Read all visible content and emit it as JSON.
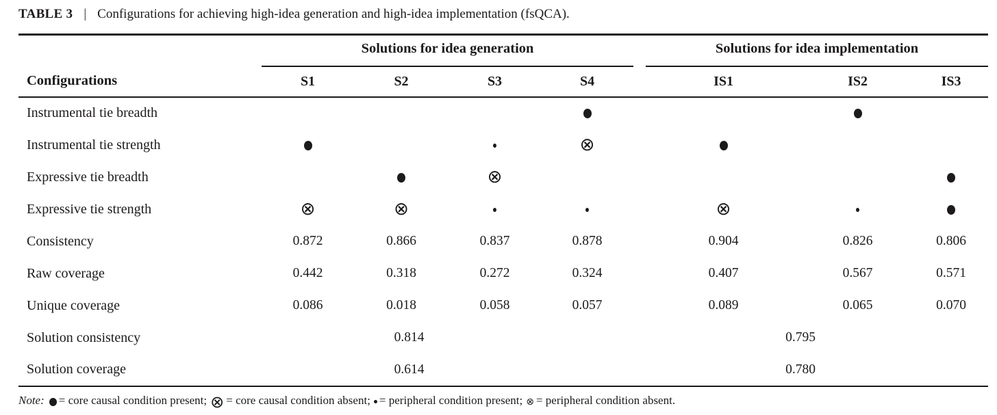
{
  "title": {
    "label": "TABLE 3",
    "separator": "|",
    "caption": "Configurations for achieving high-idea generation and high-idea implementation (fsQCA)."
  },
  "table": {
    "row_header": "Configurations",
    "groups": [
      {
        "label": "Solutions for idea generation",
        "columns": [
          "S1",
          "S2",
          "S3",
          "S4"
        ]
      },
      {
        "label": "Solutions for idea implementation",
        "columns": [
          "IS1",
          "IS2",
          "IS3"
        ]
      }
    ],
    "symbols": {
      "core_present": "●",
      "core_absent": "⊗",
      "peripheral_present": "•",
      "peripheral_absent": "⊗"
    },
    "condition_rows": [
      {
        "label": "Instrumental tie breadth",
        "cells": [
          "",
          "",
          "",
          "core-present",
          "",
          "core-present",
          ""
        ]
      },
      {
        "label": "Instrumental tie strength",
        "cells": [
          "core-present",
          "",
          "peripheral-present",
          "core-absent",
          "core-present",
          "",
          ""
        ]
      },
      {
        "label": "Expressive tie breadth",
        "cells": [
          "",
          "core-present",
          "core-absent",
          "",
          "",
          "",
          "core-present"
        ]
      },
      {
        "label": "Expressive tie strength",
        "cells": [
          "core-absent",
          "core-absent",
          "peripheral-present",
          "peripheral-present",
          "core-absent",
          "peripheral-present",
          "core-present"
        ]
      }
    ],
    "metric_rows": [
      {
        "label": "Consistency",
        "values": [
          "0.872",
          "0.866",
          "0.837",
          "0.878",
          "0.904",
          "0.826",
          "0.806"
        ]
      },
      {
        "label": "Raw coverage",
        "values": [
          "0.442",
          "0.318",
          "0.272",
          "0.324",
          "0.407",
          "0.567",
          "0.571"
        ]
      },
      {
        "label": "Unique coverage",
        "values": [
          "0.086",
          "0.018",
          "0.058",
          "0.057",
          "0.089",
          "0.065",
          "0.070"
        ]
      }
    ],
    "solution_rows": [
      {
        "label": "Solution consistency",
        "generation": "0.814",
        "implementation": "0.795"
      },
      {
        "label": "Solution coverage",
        "generation": "0.614",
        "implementation": "0.780"
      }
    ]
  },
  "note": {
    "prefix": "Note:",
    "segments": [
      {
        "symbol": "●",
        "kind": "core-present",
        "text": "= core causal condition present;"
      },
      {
        "symbol": "⊗",
        "kind": "core-absent",
        "text": "= core causal condition absent;"
      },
      {
        "symbol": "•",
        "kind": "peripheral-present",
        "text": "= peripheral condition present;"
      },
      {
        "symbol": "⊗",
        "kind": "peripheral-absent",
        "text": "= peripheral condition absent."
      }
    ]
  }
}
